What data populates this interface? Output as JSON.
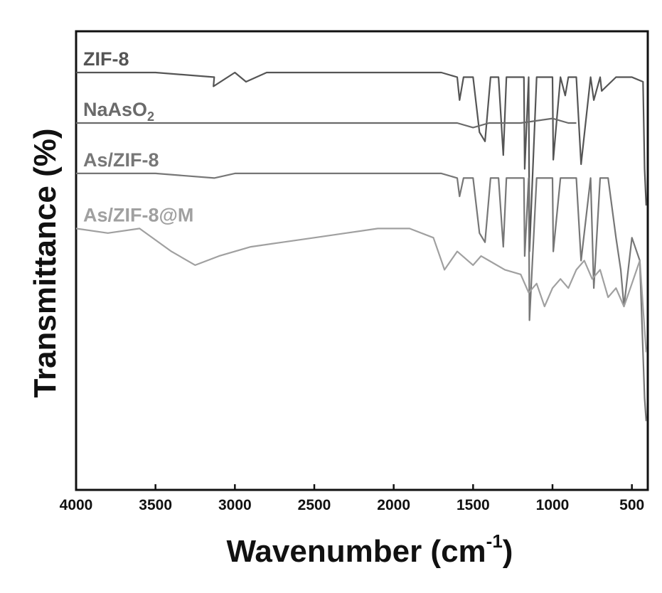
{
  "chart_data": {
    "type": "line",
    "title": "",
    "xlabel": "Wavenumber (cm",
    "xlabel_sup": "-1",
    "xlabel_close": ")",
    "ylabel": "Transmittance (%)",
    "xlim": [
      4000,
      400
    ],
    "ylim": [
      0,
      100
    ],
    "x_reversed": true,
    "yticks_visible": false,
    "grid": false,
    "xticks": [
      4000,
      3500,
      3000,
      2500,
      2000,
      1500,
      1000,
      500
    ],
    "xtick_labels": [
      "4000",
      "3500",
      "3000",
      "2500",
      "2000",
      "1500",
      "1000",
      "500"
    ],
    "series": [
      {
        "name": "ZIF-8",
        "label_main": "ZIF-8",
        "label_sub": "",
        "color": "#555555",
        "x": [
          4000,
          3500,
          3130,
          3135,
          3000,
          2930,
          2800,
          2500,
          2000,
          1700,
          1600,
          1585,
          1560,
          1500,
          1460,
          1425,
          1390,
          1340,
          1310,
          1290,
          1250,
          1180,
          1175,
          1150,
          1145,
          1100,
          1000,
          995,
          950,
          920,
          900,
          850,
          820,
          760,
          740,
          700,
          690,
          600,
          550,
          500,
          430,
          420,
          410
        ],
        "y": [
          91,
          91,
          90,
          88,
          91,
          89,
          91,
          91,
          91,
          91,
          90,
          85,
          90,
          90,
          78,
          76,
          90,
          90,
          73,
          90,
          90,
          90,
          70,
          90,
          52,
          90,
          90,
          72,
          90,
          86,
          90,
          90,
          71,
          90,
          85,
          90,
          87,
          90,
          90,
          90,
          89,
          70,
          62
        ]
      },
      {
        "name": "NaAsO2",
        "label_main": "NaAsO",
        "label_sub": "2",
        "color": "#6a6a6a",
        "x": [
          4000,
          3000,
          2000,
          1600,
          1500,
          1400,
          1200,
          1000,
          900,
          850
        ],
        "y": [
          80,
          80,
          80,
          80,
          79,
          80,
          80,
          81,
          80,
          80
        ]
      },
      {
        "name": "As/ZIF-8",
        "label_main": "As/ZIF-8",
        "label_sub": "",
        "color": "#777777",
        "x": [
          4000,
          3500,
          3130,
          3000,
          2800,
          2500,
          2000,
          1700,
          1600,
          1585,
          1560,
          1500,
          1460,
          1425,
          1390,
          1340,
          1310,
          1290,
          1250,
          1180,
          1175,
          1150,
          1145,
          1100,
          1000,
          995,
          950,
          900,
          850,
          820,
          760,
          740,
          700,
          650,
          600,
          570,
          550,
          500,
          450,
          420,
          410
        ],
        "y": [
          69,
          69,
          68,
          69,
          69,
          69,
          69,
          69,
          68,
          64,
          68,
          68,
          56,
          54,
          68,
          68,
          53,
          68,
          68,
          68,
          51,
          68,
          37,
          68,
          68,
          52,
          68,
          68,
          68,
          50,
          68,
          44,
          68,
          68,
          55,
          48,
          40,
          55,
          50,
          20,
          15
        ]
      },
      {
        "name": "As/ZIF-8@M",
        "label_main": "As/ZIF-8@M",
        "label_sub": "",
        "color": "#a0a0a0",
        "x": [
          4000,
          3800,
          3600,
          3400,
          3250,
          3100,
          2900,
          2700,
          2500,
          2300,
          2100,
          1900,
          1750,
          1700,
          1680,
          1600,
          1500,
          1450,
          1400,
          1300,
          1200,
          1150,
          1100,
          1050,
          1000,
          950,
          900,
          850,
          800,
          750,
          700,
          650,
          600,
          550,
          500,
          450,
          420,
          410
        ],
        "y": [
          57,
          56,
          57,
          52,
          49,
          51,
          53,
          54,
          55,
          56,
          57,
          57,
          55,
          50,
          48,
          52,
          49,
          51,
          50,
          48,
          47,
          43,
          45,
          40,
          44,
          46,
          44,
          48,
          50,
          46,
          48,
          42,
          44,
          40,
          45,
          50,
          35,
          30
        ]
      }
    ]
  }
}
